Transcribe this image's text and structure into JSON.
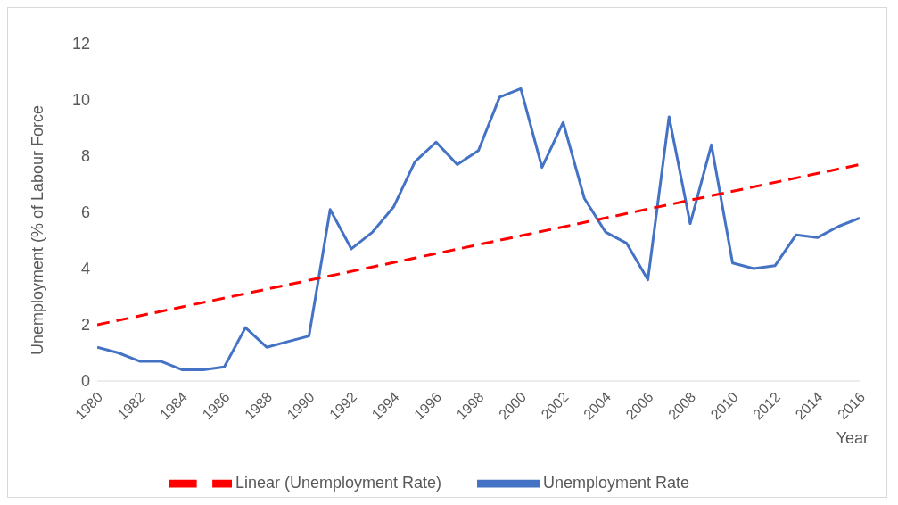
{
  "chart_data": {
    "type": "line",
    "xlabel": "Year",
    "ylabel": "Unemployment (% of Labour Force",
    "xlim": [
      1980,
      2016
    ],
    "xticks": [
      1980,
      1982,
      1984,
      1986,
      1988,
      1990,
      1992,
      1994,
      1996,
      1998,
      2000,
      2002,
      2004,
      2006,
      2008,
      2010,
      2012,
      2014,
      2016
    ],
    "ylim": [
      0,
      12
    ],
    "yticks": [
      0,
      2,
      4,
      6,
      8,
      10,
      12
    ],
    "grid": false,
    "legend": "bottom",
    "marker": "none",
    "x": [
      1980,
      1981,
      1982,
      1983,
      1984,
      1985,
      1986,
      1987,
      1988,
      1989,
      1990,
      1991,
      1992,
      1993,
      1994,
      1995,
      1996,
      1997,
      1998,
      1999,
      2000,
      2001,
      2002,
      2003,
      2004,
      2005,
      2006,
      2007,
      2008,
      2009,
      2010,
      2011,
      2012,
      2013,
      2014,
      2015,
      2016
    ],
    "series": [
      {
        "name": "Unemployment Rate",
        "color": "#4472c4",
        "line_style": "solid",
        "values": [
          1.2,
          1.0,
          0.7,
          0.7,
          0.4,
          0.4,
          0.5,
          1.9,
          1.2,
          1.4,
          1.6,
          6.1,
          4.7,
          5.3,
          6.2,
          7.8,
          8.5,
          7.7,
          8.2,
          10.1,
          10.4,
          7.6,
          9.2,
          6.5,
          5.3,
          4.9,
          3.6,
          9.4,
          5.6,
          8.4,
          4.2,
          4.0,
          4.1,
          5.2,
          5.1,
          5.5,
          5.8
        ]
      },
      {
        "name": "Linear (Unemployment Rate)",
        "color": "#ff0000",
        "line_style": "dashed",
        "x": [
          1980,
          2016
        ],
        "values": [
          2.0,
          7.7
        ]
      }
    ]
  }
}
